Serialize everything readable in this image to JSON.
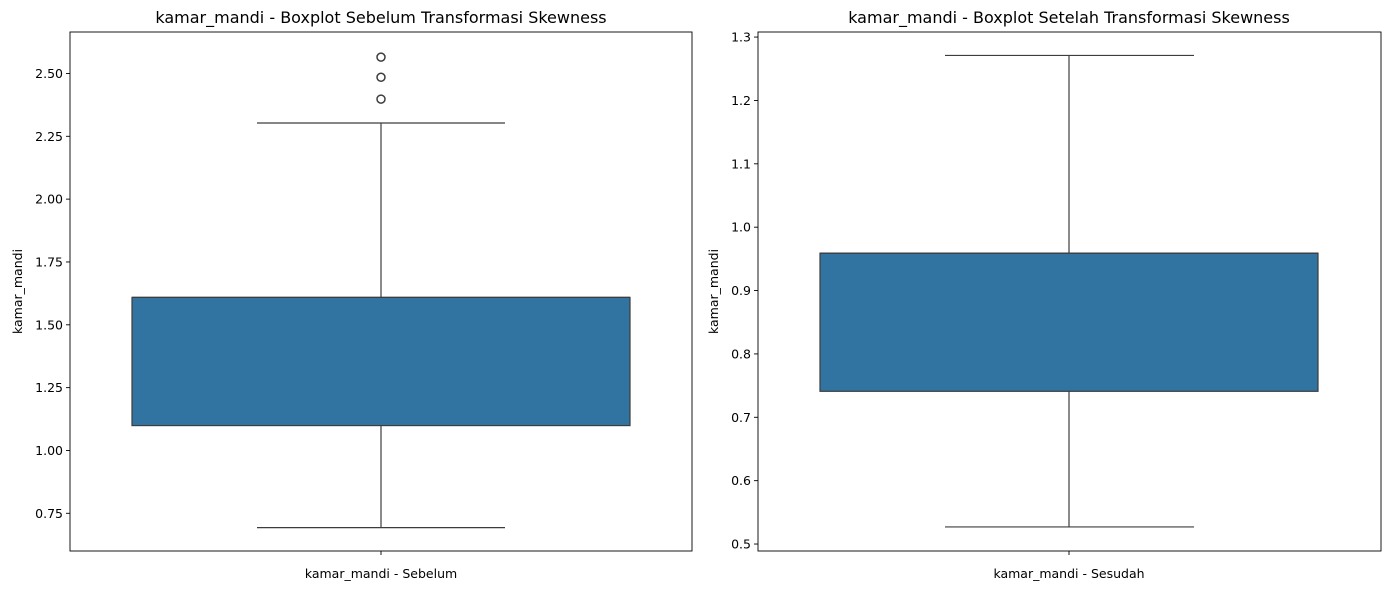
{
  "chart_data": [
    {
      "type": "box",
      "title": "kamar_mandi - Boxplot Sebelum Transformasi Skewness",
      "xlabel": "",
      "ylabel": "kamar_mandi",
      "categories": [
        "kamar_mandi - Sebelum"
      ],
      "ylim": [
        0.6,
        2.665
      ],
      "yticks": [
        "0.75",
        "1.00",
        "1.25",
        "1.50",
        "1.75",
        "2.00",
        "2.25",
        "2.50"
      ],
      "box": {
        "whisker_low": 0.693,
        "q1": 1.099,
        "median": 1.609,
        "q3": 1.609,
        "whisker_high": 2.303
      },
      "outliers": [
        2.398,
        2.485,
        2.565
      ],
      "grid": false,
      "color": "#3274a1"
    },
    {
      "type": "box",
      "title": "kamar_mandi - Boxplot Setelah Transformasi Skewness",
      "xlabel": "",
      "ylabel": "kamar_mandi",
      "categories": [
        "kamar_mandi - Sesudah"
      ],
      "ylim": [
        0.489,
        1.308
      ],
      "yticks": [
        "0.5",
        "0.6",
        "0.7",
        "0.8",
        "0.9",
        "1.0",
        "1.1",
        "1.2",
        "1.3"
      ],
      "box": {
        "whisker_low": 0.527,
        "q1": 0.741,
        "median": 0.959,
        "q3": 0.959,
        "whisker_high": 1.271
      },
      "outliers": [],
      "grid": false,
      "color": "#3274a1"
    }
  ]
}
